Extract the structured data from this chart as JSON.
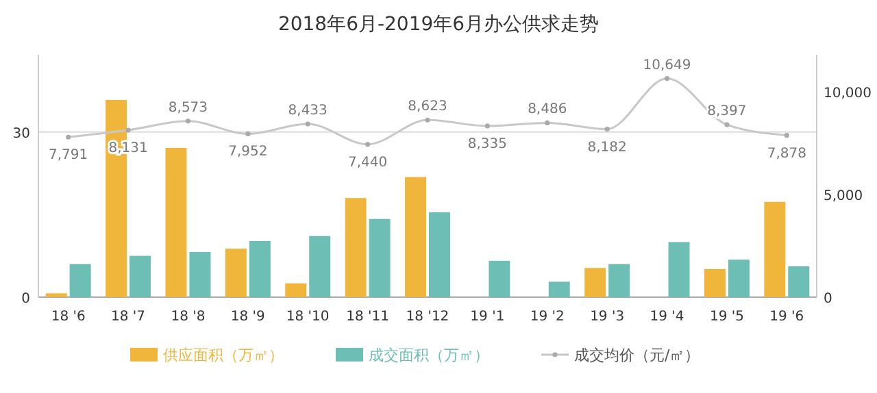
{
  "chart_data": {
    "type": "bar",
    "title": "2018年6月-2019年6月办公供求走势",
    "categories": [
      "18 '6",
      "18 '7",
      "18 '8",
      "18 '9",
      "18 '10",
      "18 '11",
      "18 '12",
      "19 '1",
      "19 '2",
      "19 '3",
      "19 '4",
      "19 '5",
      "19 '6"
    ],
    "series": [
      {
        "name": "供应面积（万㎡）",
        "color": "#f0b63c",
        "values": [
          0.7,
          35.8,
          27.1,
          8.8,
          2.5,
          18,
          21.8,
          0,
          0,
          5.3,
          0,
          5.1,
          17.3
        ]
      },
      {
        "name": "成交面积（万㎡）",
        "color": "#6dbfb5",
        "values": [
          6,
          7.5,
          8.2,
          10.2,
          11.1,
          14.2,
          15.4,
          6.6,
          2.8,
          6,
          10,
          6.8,
          5.6
        ]
      },
      {
        "name": "成交均价（元/㎡）",
        "type": "line",
        "axis": "y2",
        "color": "#c8c8c8",
        "marker": "circle",
        "value_labels": [
          "7,791",
          "8,131",
          "8,573",
          "7,952",
          "8,433",
          "7,440",
          "8,623",
          "8,335",
          "8,486",
          "8,182",
          "10,649",
          "8,397",
          "7,878"
        ],
        "values": [
          7791,
          8131,
          8573,
          7952,
          8433,
          7440,
          8623,
          8335,
          8486,
          8182,
          10649,
          8397,
          7878
        ]
      }
    ],
    "ylim": [
      0,
      44
    ],
    "yticks": [
      0,
      30
    ],
    "y2lim": [
      0,
      11800
    ],
    "y2ticks": [
      {
        "value": 0,
        "label": "0"
      },
      {
        "value": 5000,
        "label": "5,000"
      },
      {
        "value": 10000,
        "label": "10,000"
      }
    ],
    "grid": "y",
    "legend": "bottom"
  }
}
